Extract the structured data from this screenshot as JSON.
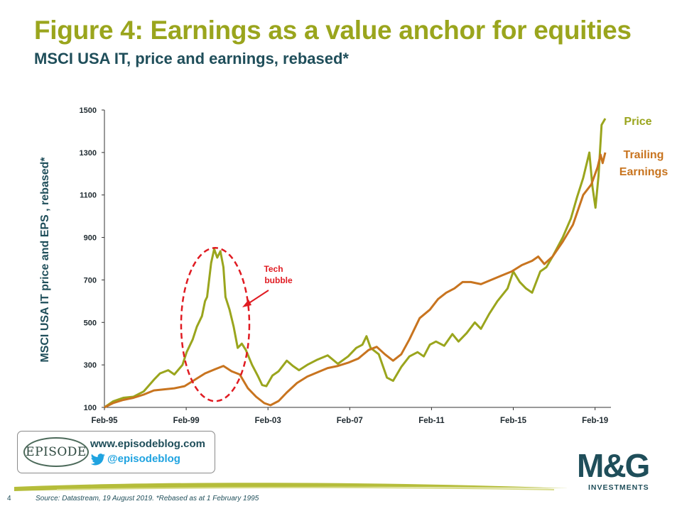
{
  "title": "Figure 4: Earnings as a value anchor for equities",
  "subtitle": "MSCI USA IT, price and earnings, rebased*",
  "colors": {
    "price": "#9aa51d",
    "earnings": "#c8741f",
    "annotation": "#e01b22",
    "text": "#1f4e5a",
    "twitter": "#1fa3e0"
  },
  "chart_data": {
    "type": "line",
    "title": "Figure 4: Earnings as a value anchor for equities",
    "subtitle": "MSCI USA IT, price and earnings, rebased*",
    "ylabel": "MSCI USA IT price and EPS , rebased*",
    "xlabel": "",
    "ylim": [
      100,
      1500
    ],
    "yticks": [
      100,
      300,
      500,
      700,
      900,
      1100,
      1300,
      1500
    ],
    "xticks": [
      "Feb-95",
      "Feb-99",
      "Feb-03",
      "Feb-07",
      "Feb-11",
      "Feb-15",
      "Feb-19"
    ],
    "x_range": [
      1995.08,
      2019.58
    ],
    "legend_position": "right, inline labels",
    "series": [
      {
        "name": "Price",
        "color": "#9aa51d",
        "points": [
          [
            1995.08,
            100
          ],
          [
            1995.5,
            128
          ],
          [
            1996.0,
            145
          ],
          [
            1996.5,
            150
          ],
          [
            1997.0,
            175
          ],
          [
            1997.5,
            230
          ],
          [
            1997.8,
            260
          ],
          [
            1998.2,
            275
          ],
          [
            1998.5,
            255
          ],
          [
            1998.9,
            300
          ],
          [
            1999.1,
            360
          ],
          [
            1999.4,
            420
          ],
          [
            1999.6,
            480
          ],
          [
            1999.85,
            530
          ],
          [
            2000.0,
            600
          ],
          [
            2000.1,
            620
          ],
          [
            2000.3,
            780
          ],
          [
            2000.45,
            845
          ],
          [
            2000.6,
            805
          ],
          [
            2000.75,
            835
          ],
          [
            2000.9,
            760
          ],
          [
            2001.0,
            620
          ],
          [
            2001.2,
            560
          ],
          [
            2001.4,
            480
          ],
          [
            2001.6,
            380
          ],
          [
            2001.8,
            400
          ],
          [
            2002.0,
            370
          ],
          [
            2002.3,
            300
          ],
          [
            2002.6,
            245
          ],
          [
            2002.8,
            205
          ],
          [
            2003.0,
            200
          ],
          [
            2003.3,
            250
          ],
          [
            2003.6,
            270
          ],
          [
            2004.0,
            320
          ],
          [
            2004.3,
            295
          ],
          [
            2004.6,
            275
          ],
          [
            2005.0,
            300
          ],
          [
            2005.5,
            325
          ],
          [
            2006.0,
            345
          ],
          [
            2006.5,
            305
          ],
          [
            2007.0,
            340
          ],
          [
            2007.4,
            380
          ],
          [
            2007.7,
            395
          ],
          [
            2007.9,
            435
          ],
          [
            2008.1,
            380
          ],
          [
            2008.5,
            350
          ],
          [
            2008.9,
            240
          ],
          [
            2009.2,
            225
          ],
          [
            2009.6,
            290
          ],
          [
            2010.0,
            340
          ],
          [
            2010.4,
            360
          ],
          [
            2010.7,
            340
          ],
          [
            2011.0,
            395
          ],
          [
            2011.3,
            410
          ],
          [
            2011.7,
            390
          ],
          [
            2012.1,
            445
          ],
          [
            2012.4,
            410
          ],
          [
            2012.8,
            450
          ],
          [
            2013.2,
            500
          ],
          [
            2013.5,
            470
          ],
          [
            2013.9,
            540
          ],
          [
            2014.3,
            600
          ],
          [
            2014.8,
            660
          ],
          [
            2015.08,
            740
          ],
          [
            2015.4,
            690
          ],
          [
            2015.7,
            660
          ],
          [
            2016.0,
            640
          ],
          [
            2016.4,
            740
          ],
          [
            2016.7,
            760
          ],
          [
            2017.0,
            810
          ],
          [
            2017.5,
            900
          ],
          [
            2017.9,
            990
          ],
          [
            2018.2,
            1090
          ],
          [
            2018.5,
            1180
          ],
          [
            2018.8,
            1300
          ],
          [
            2018.95,
            1140
          ],
          [
            2019.1,
            1040
          ],
          [
            2019.25,
            1190
          ],
          [
            2019.4,
            1430
          ],
          [
            2019.58,
            1460
          ]
        ]
      },
      {
        "name": "Trailing Earnings",
        "color": "#c8741f",
        "points": [
          [
            1995.08,
            100
          ],
          [
            1995.5,
            120
          ],
          [
            1996.0,
            135
          ],
          [
            1996.5,
            145
          ],
          [
            1997.0,
            160
          ],
          [
            1997.5,
            180
          ],
          [
            1998.0,
            185
          ],
          [
            1998.5,
            190
          ],
          [
            1999.0,
            200
          ],
          [
            1999.5,
            230
          ],
          [
            2000.0,
            260
          ],
          [
            2000.5,
            280
          ],
          [
            2000.9,
            295
          ],
          [
            2001.3,
            270
          ],
          [
            2001.7,
            255
          ],
          [
            2002.1,
            190
          ],
          [
            2002.5,
            150
          ],
          [
            2002.9,
            120
          ],
          [
            2003.2,
            110
          ],
          [
            2003.6,
            130
          ],
          [
            2004.0,
            170
          ],
          [
            2004.5,
            215
          ],
          [
            2005.0,
            245
          ],
          [
            2005.5,
            265
          ],
          [
            2006.0,
            285
          ],
          [
            2006.5,
            295
          ],
          [
            2007.0,
            310
          ],
          [
            2007.5,
            330
          ],
          [
            2008.0,
            370
          ],
          [
            2008.4,
            385
          ],
          [
            2008.8,
            350
          ],
          [
            2009.2,
            320
          ],
          [
            2009.6,
            350
          ],
          [
            2010.0,
            420
          ],
          [
            2010.5,
            520
          ],
          [
            2011.0,
            560
          ],
          [
            2011.4,
            610
          ],
          [
            2011.8,
            640
          ],
          [
            2012.2,
            660
          ],
          [
            2012.6,
            690
          ],
          [
            2013.0,
            690
          ],
          [
            2013.5,
            680
          ],
          [
            2014.0,
            700
          ],
          [
            2014.5,
            720
          ],
          [
            2015.0,
            740
          ],
          [
            2015.5,
            770
          ],
          [
            2016.0,
            790
          ],
          [
            2016.3,
            810
          ],
          [
            2016.6,
            775
          ],
          [
            2017.0,
            810
          ],
          [
            2017.5,
            880
          ],
          [
            2018.0,
            960
          ],
          [
            2018.5,
            1100
          ],
          [
            2018.9,
            1150
          ],
          [
            2019.2,
            1230
          ],
          [
            2019.35,
            1290
          ],
          [
            2019.45,
            1250
          ],
          [
            2019.58,
            1300
          ]
        ]
      }
    ],
    "annotations": [
      {
        "text": "Tech\nbubble",
        "target_x": 2000.6,
        "target_y": 520
      }
    ],
    "series_labels": [
      "Price",
      "Trailing\nEarnings"
    ]
  },
  "logo_text": {
    "episode": "EPISODE",
    "mg": "M&G",
    "mg_sub": "INVESTMENTS"
  },
  "promo": {
    "url": "www.episodeblog.com",
    "handle": "@episodeblog"
  },
  "footer": {
    "page_number": "4",
    "source": "Source: Datastream, 19 August 2019. *Rebased as at 1 February 1995"
  }
}
